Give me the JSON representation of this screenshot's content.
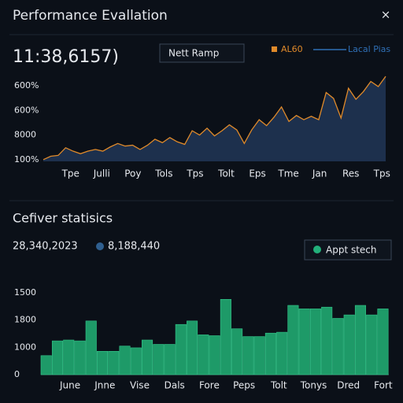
{
  "header": {
    "title": "Performance Evallation",
    "close": "×"
  },
  "summary": {
    "big_number": "11:38,6157)",
    "button": "Nett Ramp"
  },
  "section": {
    "title": "Cefiver statisics",
    "stat_a": "28,340,2023",
    "stat_b": "8,188,440",
    "button": "Appt stech"
  },
  "chart_data": [
    {
      "type": "area",
      "legend": [
        {
          "name": "AL60",
          "color": "#e08a2a"
        },
        {
          "name": "Lacal Pias",
          "color": "#2f6fb5"
        }
      ],
      "y_labels": [
        "600%",
        "600%",
        "8000",
        "100%"
      ],
      "x_labels": [
        "Tpe",
        "Julli",
        "Poy",
        "Tols",
        "Tps",
        "Tolt",
        "Eps",
        "Tme",
        "Jan",
        "Res",
        "Tps"
      ],
      "ylim": [
        0,
        100
      ],
      "fill": "#1f3350",
      "series": [
        {
          "name": "AL60",
          "color": "#e08a2a",
          "values": [
            2,
            6,
            7,
            16,
            12,
            9,
            12,
            14,
            12,
            17,
            21,
            18,
            19,
            14,
            19,
            26,
            22,
            28,
            23,
            20,
            36,
            31,
            39,
            30,
            36,
            43,
            37,
            21,
            37,
            49,
            42,
            52,
            64,
            47,
            54,
            49,
            53,
            49,
            81,
            74,
            51,
            86,
            73,
            82,
            94,
            88,
            100
          ]
        }
      ]
    },
    {
      "type": "bar",
      "y_labels": [
        "1500",
        "1800",
        "1000",
        "0"
      ],
      "x_labels": [
        "June",
        "Jnne",
        "Vise",
        "Dals",
        "Fore",
        "Peps",
        "Tolt",
        "Tonys",
        "Dred",
        "Fort"
      ],
      "ylim": [
        0,
        100
      ],
      "color": "#1e9a68",
      "values": [
        22,
        39,
        40,
        39,
        62,
        27,
        27,
        33,
        31,
        40,
        35,
        35,
        58,
        62,
        46,
        45,
        87,
        53,
        44,
        44,
        48,
        49,
        80,
        76,
        76,
        78,
        65,
        69,
        80,
        69,
        76
      ]
    }
  ]
}
